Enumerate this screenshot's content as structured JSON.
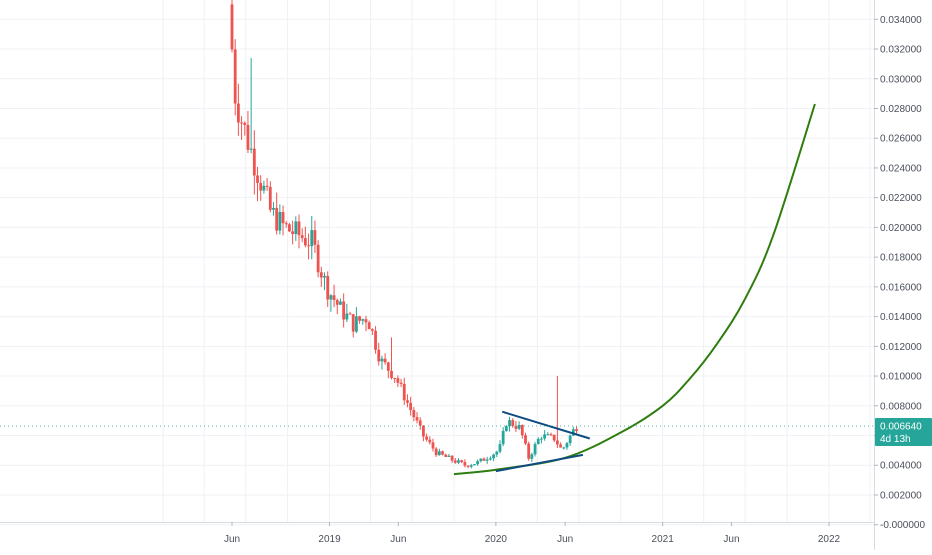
{
  "chart_data": {
    "type": "candlestick",
    "y_axis": {
      "position": "right",
      "range": [
        -0.0015,
        0.0355
      ],
      "ticks": [
        "0.034000",
        "0.032000",
        "0.030000",
        "0.028000",
        "0.026000",
        "0.024000",
        "0.022000",
        "0.020000",
        "0.018000",
        "0.016000",
        "0.014000",
        "0.012000",
        "0.010000",
        "0.008000",
        "0.006000",
        "0.004000",
        "0.002000",
        "-0.000000"
      ]
    },
    "x_axis": {
      "ticks": [
        {
          "label": "Jun",
          "date": "2018-06-01"
        },
        {
          "label": "2019",
          "date": "2019-01-01"
        },
        {
          "label": "Jun",
          "date": "2019-06-01"
        },
        {
          "label": "2020",
          "date": "2020-01-01"
        },
        {
          "label": "Jun",
          "date": "2020-06-01"
        },
        {
          "label": "2021",
          "date": "2021-01-01"
        },
        {
          "label": "Jun",
          "date": "2021-06-01"
        },
        {
          "label": "2022",
          "date": "2022-01-01"
        }
      ]
    },
    "grid": true,
    "colors": {
      "up": "#26a69a",
      "down": "#ef5350",
      "curve": "#2e7d0e",
      "trendline": "#0f4c81",
      "price_badge": "#26a69a"
    },
    "last_price": {
      "value": "0.006640",
      "countdown": "4d 13h"
    },
    "anchors": [
      {
        "date": "2018-06-01",
        "price": 0.035
      },
      {
        "date": "2018-06-15",
        "price": 0.029
      },
      {
        "date": "2018-07-01",
        "price": 0.027
      },
      {
        "date": "2018-08-01",
        "price": 0.024
      },
      {
        "date": "2018-09-01",
        "price": 0.021
      },
      {
        "date": "2018-10-01",
        "price": 0.02
      },
      {
        "date": "2018-11-01",
        "price": 0.0195
      },
      {
        "date": "2018-12-01",
        "price": 0.019
      },
      {
        "date": "2019-01-01",
        "price": 0.016
      },
      {
        "date": "2019-02-01",
        "price": 0.0145
      },
      {
        "date": "2019-03-01",
        "price": 0.0135
      },
      {
        "date": "2019-04-01",
        "price": 0.014
      },
      {
        "date": "2019-05-01",
        "price": 0.011
      },
      {
        "date": "2019-06-01",
        "price": 0.01
      },
      {
        "date": "2019-07-01",
        "price": 0.008
      },
      {
        "date": "2019-08-01",
        "price": 0.006
      },
      {
        "date": "2019-09-01",
        "price": 0.0048
      },
      {
        "date": "2019-10-01",
        "price": 0.0044
      },
      {
        "date": "2019-11-01",
        "price": 0.004
      },
      {
        "date": "2019-12-01",
        "price": 0.0042
      },
      {
        "date": "2020-01-15",
        "price": 0.005
      },
      {
        "date": "2020-02-01",
        "price": 0.007
      },
      {
        "date": "2020-03-01",
        "price": 0.0065
      },
      {
        "date": "2020-03-20",
        "price": 0.0045
      },
      {
        "date": "2020-04-15",
        "price": 0.006
      },
      {
        "date": "2020-05-15",
        "price": 0.0058
      },
      {
        "date": "2020-06-01",
        "price": 0.005
      },
      {
        "date": "2020-07-01",
        "price": 0.0066
      }
    ],
    "spikes": [
      {
        "date": "2018-07-10",
        "high": 0.0314
      },
      {
        "date": "2019-05-15",
        "high": 0.0126
      },
      {
        "date": "2020-05-12",
        "high": 0.01
      }
    ],
    "curve": [
      {
        "date": "2019-10-01",
        "price": 0.0034
      },
      {
        "date": "2020-01-01",
        "price": 0.0037
      },
      {
        "date": "2020-06-01",
        "price": 0.0045
      },
      {
        "date": "2020-10-01",
        "price": 0.0062
      },
      {
        "date": "2021-01-01",
        "price": 0.008
      },
      {
        "date": "2021-03-01",
        "price": 0.0098
      },
      {
        "date": "2021-05-01",
        "price": 0.0122
      },
      {
        "date": "2021-07-01",
        "price": 0.0152
      },
      {
        "date": "2021-09-01",
        "price": 0.0195
      },
      {
        "date": "2021-12-01",
        "price": 0.0283
      }
    ],
    "trendlines": [
      {
        "from": {
          "date": "2020-01-15",
          "price": 0.0076
        },
        "to": {
          "date": "2020-07-25",
          "price": 0.0058
        }
      },
      {
        "from": {
          "date": "2020-01-01",
          "price": 0.0036
        },
        "to": {
          "date": "2020-07-10",
          "price": 0.0047
        }
      }
    ]
  }
}
